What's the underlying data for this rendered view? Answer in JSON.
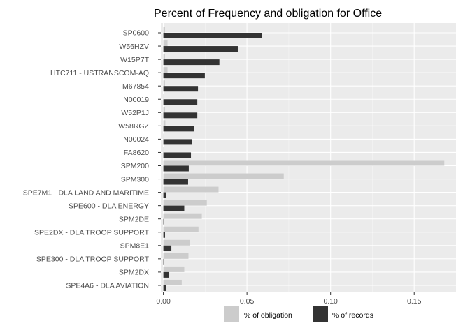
{
  "chart_data": {
    "type": "bar",
    "orientation": "horizontal",
    "title": "Percent of Frequency and obligation for Office",
    "xlabel": "",
    "ylabel": "",
    "xlim": [
      -0.0015,
      0.175
    ],
    "xticks": [
      0.0,
      0.05,
      0.1,
      0.15
    ],
    "xtick_labels": [
      "0.00",
      "0.05",
      "0.10",
      "0.15"
    ],
    "grid": true,
    "legend_position": "bottom",
    "categories": [
      "SP0600",
      "W56HZV",
      "W15P7T",
      "HTC711 - USTRANSCOM-AQ",
      "M67854",
      "N00019",
      "W52P1J",
      "W58RGZ",
      "N00024",
      "FA8620",
      "SPM200",
      "SPM300",
      "SPE7M1 - DLA LAND AND MARITIME",
      "SPE600 - DLA ENERGY",
      "SPM2DE",
      "SPE2DX - DLA TROOP SUPPORT",
      "SPM8E1",
      "SPE300 - DLA TROOP SUPPORT",
      "SPM2DX",
      "SPE4A6 - DLA AVIATION"
    ],
    "series": [
      {
        "name": "% of obligation",
        "color": "#cccccc",
        "values": [
          0.001,
          0.0025,
          0.001,
          0.0025,
          0.001,
          0.0005,
          0.001,
          0.0012,
          0.0005,
          0.0005,
          0.168,
          0.072,
          0.033,
          0.026,
          0.023,
          0.021,
          0.016,
          0.015,
          0.0125,
          0.011
        ]
      },
      {
        "name": "% of records",
        "color": "#333333",
        "values": [
          0.059,
          0.0445,
          0.0335,
          0.0248,
          0.0207,
          0.0203,
          0.0203,
          0.0185,
          0.017,
          0.0165,
          0.0152,
          0.0148,
          0.0015,
          0.0125,
          0.0005,
          0.001,
          0.0048,
          0.0005,
          0.0035,
          0.0015
        ]
      }
    ]
  }
}
